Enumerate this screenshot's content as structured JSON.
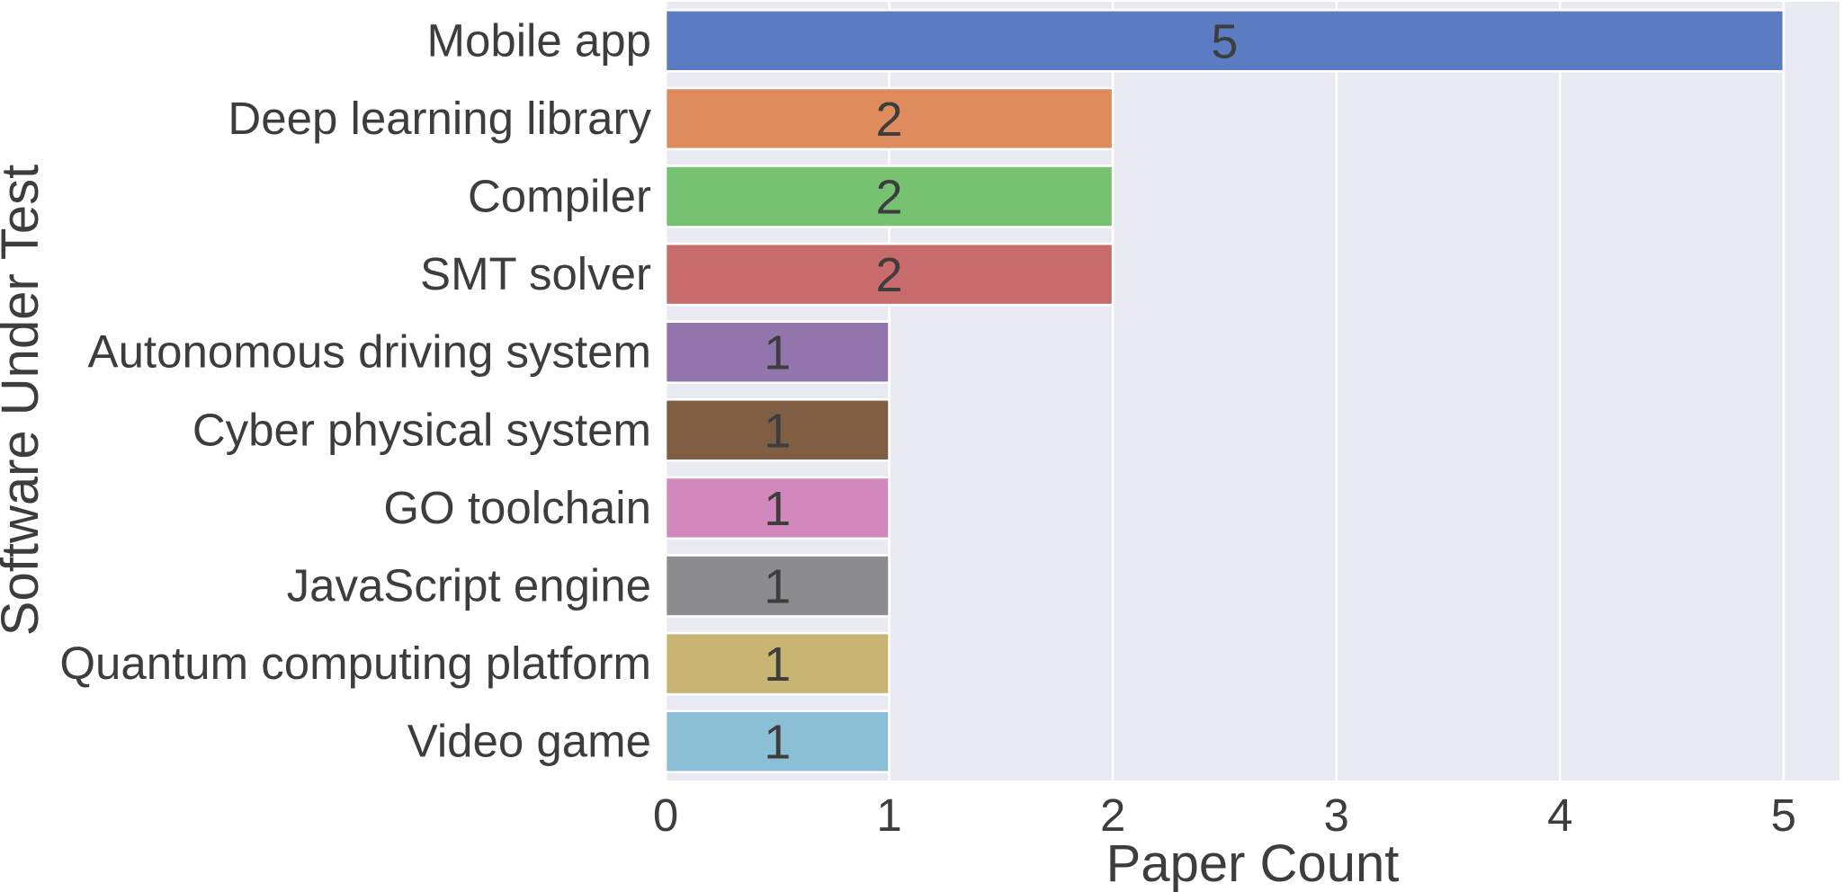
{
  "chart_data": {
    "type": "bar",
    "orientation": "horizontal",
    "title": "",
    "xlabel": "Paper Count",
    "ylabel": "Software Under Test",
    "categories": [
      "Mobile app",
      "Deep learning library",
      "Compiler",
      "SMT solver",
      "Autonomous driving system",
      "Cyber physical system",
      "GO toolchain",
      "JavaScript engine",
      "Quantum computing platform",
      "Video game"
    ],
    "values": [
      5,
      2,
      2,
      2,
      1,
      1,
      1,
      1,
      1,
      1
    ],
    "data_labels": [
      "5",
      "2",
      "2",
      "2",
      "1",
      "1",
      "1",
      "1",
      "1",
      "1"
    ],
    "colors": [
      "#5b7cc2",
      "#de8b5d",
      "#76c271",
      "#c76b6c",
      "#9375ad",
      "#7f5e44",
      "#d288bd",
      "#8c8c8e",
      "#c9b573",
      "#8bbfd6"
    ],
    "xticks": [
      "0",
      "1",
      "2",
      "3",
      "4",
      "5"
    ],
    "xlim": [
      0,
      5.25
    ],
    "grid": true,
    "legend": "none",
    "background": "#eaeaf2"
  }
}
